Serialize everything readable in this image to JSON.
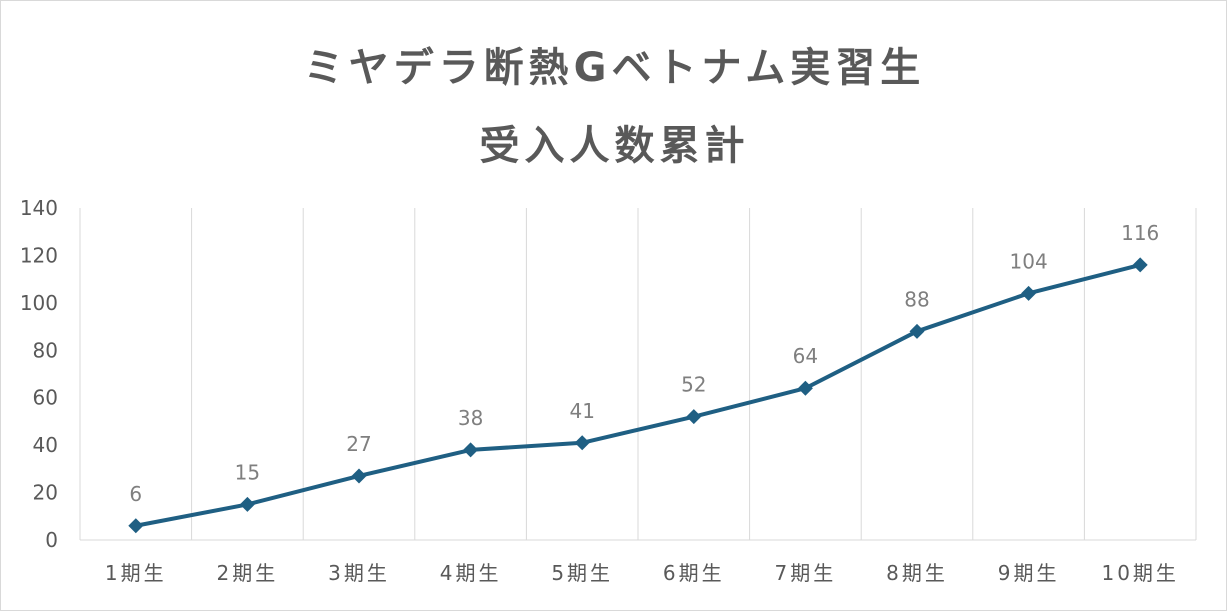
{
  "chart_data": {
    "type": "line",
    "title_line1": "ミヤデラ断熱Gベトナム実習生",
    "title_line2": "受入人数累計",
    "categories": [
      "1期生",
      "2期生",
      "3期生",
      "4期生",
      "5期生",
      "6期生",
      "7期生",
      "8期生",
      "9期生",
      "10期生"
    ],
    "values": [
      6,
      15,
      27,
      38,
      41,
      52,
      64,
      88,
      104,
      116
    ],
    "ylim": [
      0,
      140
    ],
    "yticks": [
      0,
      20,
      40,
      60,
      80,
      100,
      120,
      140
    ],
    "grid": "vertical",
    "legend": "none",
    "line_color": "#1f5f83",
    "grid_color": "#d9d9d9",
    "data_labels": true
  }
}
